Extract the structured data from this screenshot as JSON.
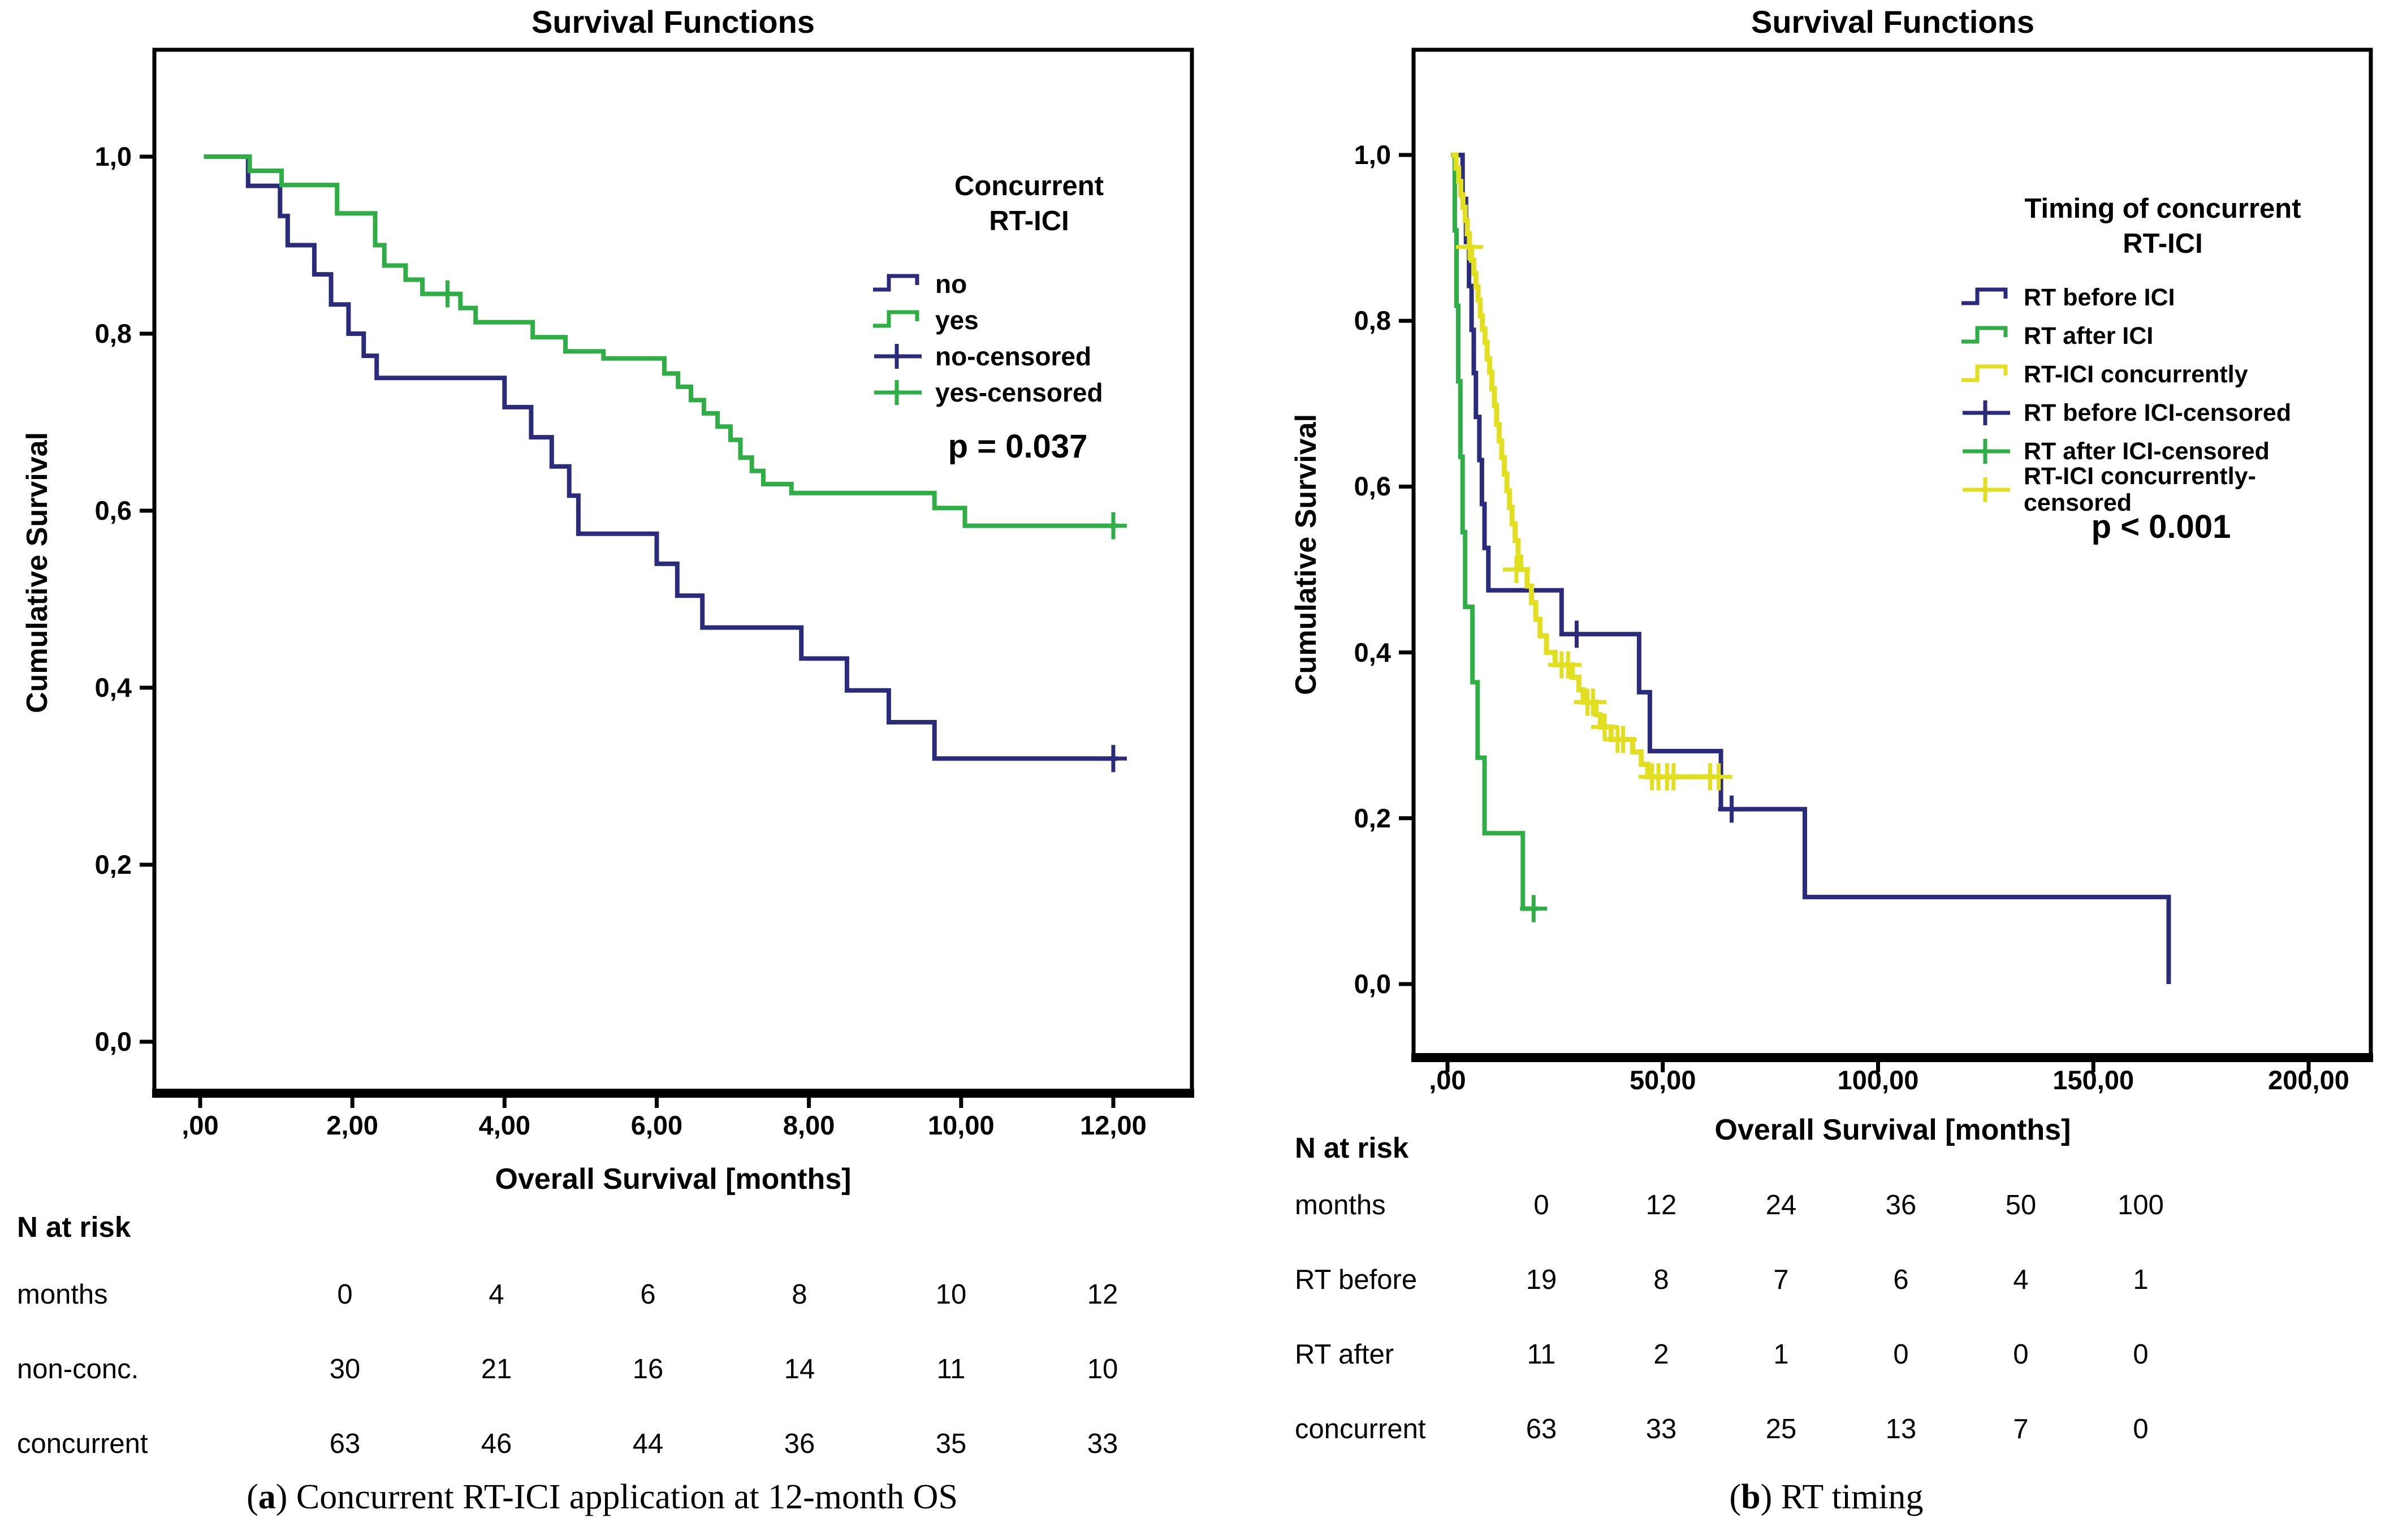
{
  "colors": {
    "navy": "#2b2b7c",
    "green": "#2fae46",
    "yellow": "#e2de20",
    "black": "#000000"
  },
  "captions": {
    "a": {
      "pre": "(",
      "bold": "a",
      "post": ") Concurrent RT-ICI application at 12-month OS"
    },
    "b": {
      "pre": "(",
      "bold": "b",
      "post": ") RT timing"
    }
  },
  "chart_data": [
    {
      "type": "line",
      "subtype": "kaplan-meier-step",
      "title": "Survival Functions",
      "xlabel": "Overall Survival [months]",
      "ylabel": "Cumulative Survival",
      "xlim": [
        0,
        12.6
      ],
      "ylim": [
        0,
        1.05
      ],
      "grid": false,
      "legend_position": "upper right",
      "p_value": "p = 0.037",
      "x_ticks": [
        {
          "v": 0,
          "label": ",00"
        },
        {
          "v": 2,
          "label": "2,00"
        },
        {
          "v": 4,
          "label": "4,00"
        },
        {
          "v": 6,
          "label": "6,00"
        },
        {
          "v": 8,
          "label": "8,00"
        },
        {
          "v": 10,
          "label": "10,00"
        },
        {
          "v": 12,
          "label": "12,00"
        }
      ],
      "y_ticks": [
        {
          "v": 1.0,
          "label": "1,0"
        },
        {
          "v": 0.8,
          "label": "0,8"
        },
        {
          "v": 0.6,
          "label": "0,6"
        },
        {
          "v": 0.4,
          "label": "0,4"
        },
        {
          "v": 0.2,
          "label": "0,2"
        },
        {
          "v": 0.0,
          "label": "0,0"
        }
      ],
      "legend": {
        "title_lines": [
          "Concurrent",
          "RT-ICI"
        ],
        "items": [
          {
            "label_lines": [
              "no"
            ],
            "color": "navy",
            "marker": "step"
          },
          {
            "label_lines": [
              "yes"
            ],
            "color": "green",
            "marker": "step"
          },
          {
            "label_lines": [
              "no-censored"
            ],
            "color": "navy",
            "marker": "plus"
          },
          {
            "label_lines": [
              "yes-censored"
            ],
            "color": "green",
            "marker": "plus"
          }
        ]
      },
      "series": [
        {
          "name": "no",
          "color": "navy",
          "points": [
            [
              0.05,
              1.0
            ],
            [
              0.63,
              0.967
            ],
            [
              1.05,
              0.933
            ],
            [
              1.15,
              0.9
            ],
            [
              1.5,
              0.867
            ],
            [
              1.72,
              0.833
            ],
            [
              1.95,
              0.8
            ],
            [
              2.15,
              0.775
            ],
            [
              2.32,
              0.75
            ],
            [
              4.0,
              0.717
            ],
            [
              4.35,
              0.683
            ],
            [
              4.62,
              0.65
            ],
            [
              4.85,
              0.617
            ],
            [
              4.97,
              0.574
            ],
            [
              6.0,
              0.54
            ],
            [
              6.27,
              0.504
            ],
            [
              6.6,
              0.468
            ],
            [
              7.9,
              0.433
            ],
            [
              8.5,
              0.397
            ],
            [
              9.05,
              0.361
            ],
            [
              9.65,
              0.32
            ],
            [
              12.05,
              0.32
            ]
          ],
          "censors": [
            [
              12.0,
              0.32
            ]
          ]
        },
        {
          "name": "yes",
          "color": "green",
          "points": [
            [
              0.05,
              1.0
            ],
            [
              0.65,
              0.984
            ],
            [
              1.07,
              0.968
            ],
            [
              1.8,
              0.936
            ],
            [
              2.3,
              0.9
            ],
            [
              2.42,
              0.877
            ],
            [
              2.7,
              0.861
            ],
            [
              2.92,
              0.845
            ],
            [
              3.42,
              0.829
            ],
            [
              3.62,
              0.813
            ],
            [
              4.37,
              0.796
            ],
            [
              4.8,
              0.78
            ],
            [
              5.3,
              0.772
            ],
            [
              6.1,
              0.755
            ],
            [
              6.28,
              0.74
            ],
            [
              6.45,
              0.725
            ],
            [
              6.62,
              0.71
            ],
            [
              6.8,
              0.695
            ],
            [
              6.97,
              0.68
            ],
            [
              7.1,
              0.66
            ],
            [
              7.25,
              0.645
            ],
            [
              7.4,
              0.63
            ],
            [
              7.77,
              0.62
            ],
            [
              9.65,
              0.603
            ],
            [
              10.05,
              0.583
            ],
            [
              12.05,
              0.583
            ]
          ],
          "censors": [
            [
              3.25,
              0.845
            ],
            [
              12.0,
              0.583
            ]
          ]
        }
      ],
      "risk_table": {
        "title": "N at risk",
        "rows": [
          {
            "label": "months",
            "values": [
              "0",
              "4",
              "6",
              "8",
              "10",
              "12"
            ]
          },
          {
            "label": "non-conc.",
            "values": [
              "30",
              "21",
              "16",
              "14",
              "11",
              "10"
            ]
          },
          {
            "label": "concurrent",
            "values": [
              "63",
              "46",
              "44",
              "36",
              "35",
              "33"
            ]
          }
        ]
      }
    },
    {
      "type": "line",
      "subtype": "kaplan-meier-step",
      "title": "Survival Functions",
      "xlabel": "Overall Survival [months]",
      "ylabel": "Cumulative Survival",
      "xlim": [
        0,
        210
      ],
      "ylim": [
        0,
        1.05
      ],
      "grid": false,
      "legend_position": "upper right",
      "p_value": "p < 0.001",
      "x_ticks": [
        {
          "v": 0,
          "label": ",00"
        },
        {
          "v": 50,
          "label": "50,00"
        },
        {
          "v": 100,
          "label": "100,00"
        },
        {
          "v": 150,
          "label": "150,00"
        },
        {
          "v": 200,
          "label": "200,00"
        }
      ],
      "y_ticks": [
        {
          "v": 1.0,
          "label": "1,0"
        },
        {
          "v": 0.8,
          "label": "0,8"
        },
        {
          "v": 0.6,
          "label": "0,6"
        },
        {
          "v": 0.4,
          "label": "0,4"
        },
        {
          "v": 0.2,
          "label": "0,2"
        },
        {
          "v": 0.0,
          "label": "0,0"
        }
      ],
      "legend": {
        "title_lines": [
          "Timing of concurrent",
          "RT-ICI"
        ],
        "items": [
          {
            "label_lines": [
              "RT before ICI"
            ],
            "color": "navy",
            "marker": "step"
          },
          {
            "label_lines": [
              "RT after ICI"
            ],
            "color": "green",
            "marker": "step"
          },
          {
            "label_lines": [
              "RT-ICI concurrently"
            ],
            "color": "yellow",
            "marker": "step"
          },
          {
            "label_lines": [
              "RT before ICI-censored"
            ],
            "color": "navy",
            "marker": "plus"
          },
          {
            "label_lines": [
              "RT after ICI-censored"
            ],
            "color": "green",
            "marker": "plus"
          },
          {
            "label_lines": [
              "RT-ICI concurrently-",
              "censored"
            ],
            "color": "yellow",
            "marker": "plus"
          }
        ]
      },
      "series": [
        {
          "name": "RT before ICI",
          "color": "navy",
          "points": [
            [
              1.2,
              1.0
            ],
            [
              3.5,
              0.947
            ],
            [
              4.3,
              0.895
            ],
            [
              5.0,
              0.842
            ],
            [
              5.6,
              0.789
            ],
            [
              6.1,
              0.737
            ],
            [
              6.6,
              0.684
            ],
            [
              7.4,
              0.632
            ],
            [
              8.0,
              0.579
            ],
            [
              8.6,
              0.526
            ],
            [
              9.5,
              0.475
            ],
            [
              26.5,
              0.422
            ],
            [
              44.5,
              0.352
            ],
            [
              47.0,
              0.281
            ],
            [
              63.5,
              0.211
            ],
            [
              83.0,
              0.105
            ],
            [
              167.5,
              0.0
            ]
          ],
          "censors": [
            [
              30.0,
              0.422
            ],
            [
              66.0,
              0.211
            ]
          ]
        },
        {
          "name": "RT after ICI",
          "color": "green",
          "points": [
            [
              0.8,
              1.0
            ],
            [
              1.7,
              0.909
            ],
            [
              2.1,
              0.818
            ],
            [
              2.5,
              0.727
            ],
            [
              3.0,
              0.636
            ],
            [
              3.5,
              0.545
            ],
            [
              4.1,
              0.455
            ],
            [
              5.8,
              0.364
            ],
            [
              7.0,
              0.273
            ],
            [
              8.6,
              0.182
            ],
            [
              17.5,
              0.091
            ],
            [
              21.0,
              0.091
            ]
          ],
          "censors": [
            [
              20.0,
              0.091
            ]
          ]
        },
        {
          "name": "RT-ICI concurrently",
          "color": "yellow",
          "points": [
            [
              0.9,
              1.0
            ],
            [
              2.0,
              0.984
            ],
            [
              2.6,
              0.968
            ],
            [
              3.1,
              0.952
            ],
            [
              3.6,
              0.937
            ],
            [
              4.1,
              0.921
            ],
            [
              4.6,
              0.905
            ],
            [
              5.1,
              0.889
            ],
            [
              5.6,
              0.873
            ],
            [
              6.1,
              0.857
            ],
            [
              6.6,
              0.841
            ],
            [
              7.1,
              0.825
            ],
            [
              7.6,
              0.806
            ],
            [
              8.1,
              0.79
            ],
            [
              8.7,
              0.774
            ],
            [
              9.2,
              0.754
            ],
            [
              9.8,
              0.738
            ],
            [
              10.3,
              0.718
            ],
            [
              10.9,
              0.698
            ],
            [
              11.4,
              0.675
            ],
            [
              12.0,
              0.655
            ],
            [
              12.6,
              0.635
            ],
            [
              13.2,
              0.615
            ],
            [
              13.8,
              0.595
            ],
            [
              14.4,
              0.575
            ],
            [
              15.0,
              0.555
            ],
            [
              15.7,
              0.535
            ],
            [
              16.4,
              0.515
            ],
            [
              17.0,
              0.5
            ],
            [
              18.5,
              0.48
            ],
            [
              19.5,
              0.46
            ],
            [
              20.5,
              0.44
            ],
            [
              21.5,
              0.42
            ],
            [
              23.0,
              0.4
            ],
            [
              25.0,
              0.385
            ],
            [
              29.0,
              0.37
            ],
            [
              30.5,
              0.355
            ],
            [
              31.5,
              0.34
            ],
            [
              34.5,
              0.325
            ],
            [
              35.5,
              0.31
            ],
            [
              38.0,
              0.295
            ],
            [
              43.0,
              0.28
            ],
            [
              45.0,
              0.265
            ],
            [
              46.5,
              0.25
            ],
            [
              63.5,
              0.25
            ]
          ],
          "censors": [
            [
              5.1,
              0.889
            ],
            [
              16.0,
              0.5
            ],
            [
              26.5,
              0.385
            ],
            [
              28.0,
              0.385
            ],
            [
              32.5,
              0.34
            ],
            [
              33.8,
              0.34
            ],
            [
              36.5,
              0.31
            ],
            [
              39.5,
              0.295
            ],
            [
              40.8,
              0.295
            ],
            [
              47.5,
              0.25
            ],
            [
              49.0,
              0.25
            ],
            [
              51.0,
              0.25
            ],
            [
              52.5,
              0.25
            ],
            [
              61.0,
              0.25
            ],
            [
              63.0,
              0.25
            ]
          ]
        }
      ],
      "risk_table": {
        "title": "N at risk",
        "rows": [
          {
            "label": "months",
            "values": [
              "0",
              "12",
              "24",
              "36",
              "50",
              "100"
            ]
          },
          {
            "label": "RT before",
            "values": [
              "19",
              "8",
              "7",
              "6",
              "4",
              "1"
            ]
          },
          {
            "label": "RT after",
            "values": [
              "11",
              "2",
              "1",
              "0",
              "0",
              "0"
            ]
          },
          {
            "label": "concurrent",
            "values": [
              "63",
              "33",
              "25",
              "13",
              "7",
              "0"
            ]
          }
        ]
      }
    }
  ]
}
